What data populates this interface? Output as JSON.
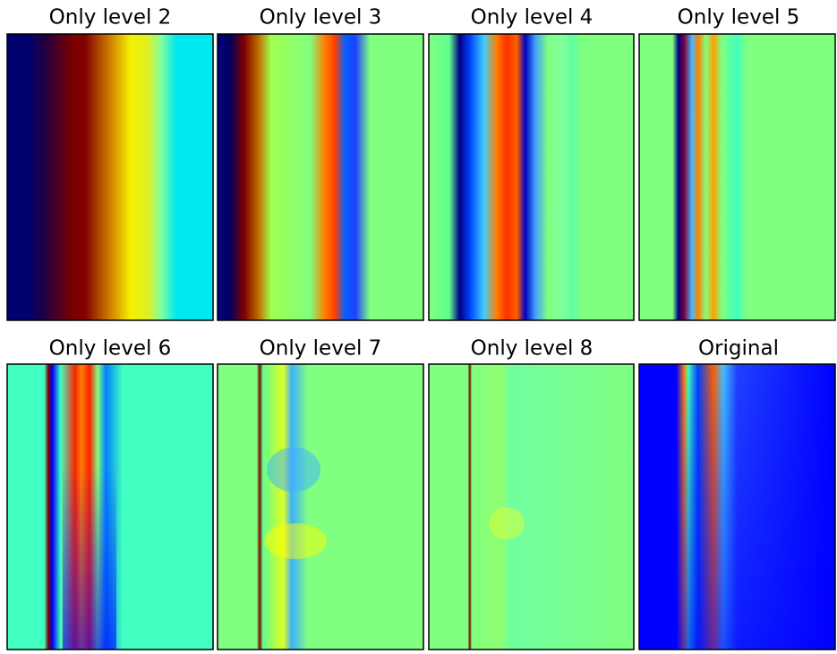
{
  "panels": [
    {
      "title": "Only level 2"
    },
    {
      "title": "Only level 3"
    },
    {
      "title": "Only level 4"
    },
    {
      "title": "Only level 5"
    },
    {
      "title": "Only level 6"
    },
    {
      "title": "Only level 7"
    },
    {
      "title": "Only level 8"
    },
    {
      "title": "Original"
    }
  ]
}
